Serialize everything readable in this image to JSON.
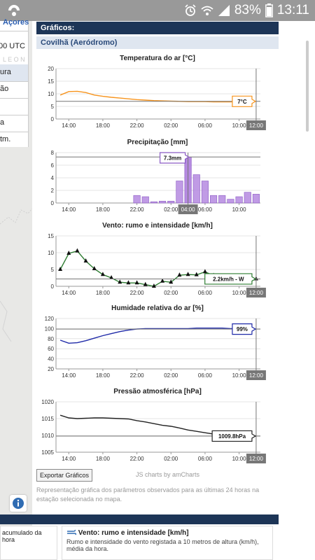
{
  "status_bar": {
    "battery": "83%",
    "time": "13:11"
  },
  "left_panel": {
    "tab_label": "Açores",
    "time_label": "00 UTC",
    "faded_label": "L E O N",
    "items": [
      "ura",
      "ão",
      "",
      "a",
      "tm."
    ]
  },
  "main": {
    "section_title": "Gráficos:",
    "station": "Covilhã (Aeródromo)",
    "export_button": "Exportar Gráficos",
    "amcharts_link": "JS charts by amCharts",
    "description": "Representação gráfica dos parâmetros observados para as últimas 24 horas na estação selecionada no mapa."
  },
  "bottom": {
    "left_text": "acumulado da hora",
    "card_title": "Vento: rumo e intensidade [km/h]",
    "card_text": "Rumo e intensidade do vento registada a 10 metros de altura (km/h), média da hora."
  },
  "chart_data": [
    {
      "type": "line",
      "title": "Temperatura do ar [°C]",
      "x": [
        "13:00",
        "14:00",
        "15:00",
        "16:00",
        "17:00",
        "18:00",
        "19:00",
        "20:00",
        "21:00",
        "22:00",
        "23:00",
        "00:00",
        "01:00",
        "02:00",
        "03:00",
        "04:00",
        "05:00",
        "06:00",
        "07:00",
        "08:00",
        "09:00",
        "10:00",
        "11:00",
        "12:00"
      ],
      "values": [
        9.5,
        10.9,
        11.0,
        10.5,
        9.5,
        9.0,
        8.6,
        8.3,
        8.0,
        7.7,
        7.5,
        7.3,
        7.2,
        7.1,
        7.0,
        6.9,
        6.9,
        6.9,
        6.8,
        6.8,
        6.8,
        6.9,
        7.0,
        7.0
      ],
      "ylim": [
        0,
        20
      ],
      "yticks": [
        0,
        5,
        10,
        15,
        20
      ],
      "xticks": [
        "14:00",
        "18:00",
        "22:00",
        "02:00",
        "06:00",
        "10:00"
      ],
      "color": "#f7941d",
      "balloon": "7°C",
      "cursor_label": "12:00"
    },
    {
      "type": "bar",
      "title": "Precipitação [mm]",
      "x": [
        "13:00",
        "14:00",
        "15:00",
        "16:00",
        "17:00",
        "18:00",
        "19:00",
        "20:00",
        "21:00",
        "22:00",
        "23:00",
        "00:00",
        "01:00",
        "02:00",
        "03:00",
        "04:00",
        "05:00",
        "06:00",
        "07:00",
        "08:00",
        "09:00",
        "10:00",
        "11:00",
        "12:00"
      ],
      "values": [
        0,
        0,
        0,
        0,
        0,
        0,
        0,
        0,
        0,
        1.2,
        1.0,
        0.2,
        0.3,
        0.3,
        3.5,
        7.3,
        4.5,
        3.5,
        1.2,
        1.2,
        0.6,
        1.0,
        1.7,
        1.4
      ],
      "ylim": [
        0,
        8
      ],
      "yticks": [
        0,
        2,
        4,
        6,
        8
      ],
      "xticks": [
        "14:00",
        "18:00",
        "22:00",
        "02:00",
        "06:00",
        "10:00"
      ],
      "color": "#b58ae0",
      "balloon": "7.3mm",
      "cursor_label": "04:00"
    },
    {
      "type": "line",
      "title": "Vento: rumo e intensidade [km/h]",
      "x": [
        "13:00",
        "14:00",
        "15:00",
        "16:00",
        "17:00",
        "18:00",
        "19:00",
        "20:00",
        "21:00",
        "22:00",
        "23:00",
        "00:00",
        "01:00",
        "02:00",
        "03:00",
        "04:00",
        "05:00",
        "06:00",
        "07:00",
        "08:00",
        "09:00",
        "10:00",
        "11:00",
        "12:00"
      ],
      "values": [
        5.0,
        9.8,
        10.5,
        7.5,
        5.2,
        3.5,
        2.5,
        1.2,
        1.0,
        1.0,
        0.5,
        0.0,
        1.5,
        1.2,
        3.3,
        3.5,
        3.4,
        4.3,
        3.2,
        2.8,
        2.2,
        2.0,
        2.5,
        2.2
      ],
      "ylim": [
        0,
        15
      ],
      "yticks": [
        0,
        5,
        10,
        15
      ],
      "xticks": [
        "14:00",
        "18:00",
        "22:00",
        "02:00",
        "06:00",
        "10:00"
      ],
      "color": "#2e7d32",
      "balloon": "2.2km/h - W",
      "cursor_label": "12:00"
    },
    {
      "type": "line",
      "title": "Humidade relativa do ar [%]",
      "x": [
        "13:00",
        "14:00",
        "15:00",
        "16:00",
        "17:00",
        "18:00",
        "19:00",
        "20:00",
        "21:00",
        "22:00",
        "23:00",
        "00:00",
        "01:00",
        "02:00",
        "03:00",
        "04:00",
        "05:00",
        "06:00",
        "07:00",
        "08:00",
        "09:00",
        "10:00",
        "11:00",
        "12:00"
      ],
      "values": [
        77,
        71,
        72,
        76,
        81,
        86,
        90,
        94,
        97,
        99,
        100,
        100,
        100,
        100,
        100,
        100,
        101,
        101,
        101,
        101,
        100,
        100,
        99,
        99
      ],
      "ylim": [
        20,
        120
      ],
      "yticks": [
        20,
        40,
        60,
        80,
        100,
        120
      ],
      "xticks": [
        "14:00",
        "18:00",
        "22:00",
        "02:00",
        "06:00",
        "10:00"
      ],
      "color": "#1f2aa8",
      "balloon": "99%",
      "cursor_label": "12:00"
    },
    {
      "type": "line",
      "title": "Pressão atmosférica [hPa]",
      "x": [
        "13:00",
        "14:00",
        "15:00",
        "16:00",
        "17:00",
        "18:00",
        "19:00",
        "20:00",
        "21:00",
        "22:00",
        "23:00",
        "00:00",
        "01:00",
        "02:00",
        "03:00",
        "04:00",
        "05:00",
        "06:00",
        "07:00",
        "08:00",
        "09:00",
        "10:00",
        "11:00",
        "12:00"
      ],
      "values": [
        1016.0,
        1015.2,
        1015.0,
        1015.1,
        1015.2,
        1015.2,
        1015.1,
        1015.0,
        1014.9,
        1014.4,
        1014.0,
        1013.5,
        1013.0,
        1012.7,
        1012.2,
        1011.6,
        1011.2,
        1010.8,
        1010.4,
        1010.1,
        1009.9,
        1009.8,
        1009.8,
        1009.8
      ],
      "ylim": [
        1005,
        1020
      ],
      "yticks": [
        1005,
        1010,
        1015,
        1020
      ],
      "xticks": [
        "14:00",
        "18:00",
        "22:00",
        "02:00",
        "06:00",
        "10:00"
      ],
      "color": "#222222",
      "balloon": "1009.8hPa",
      "cursor_label": "12:00"
    }
  ]
}
